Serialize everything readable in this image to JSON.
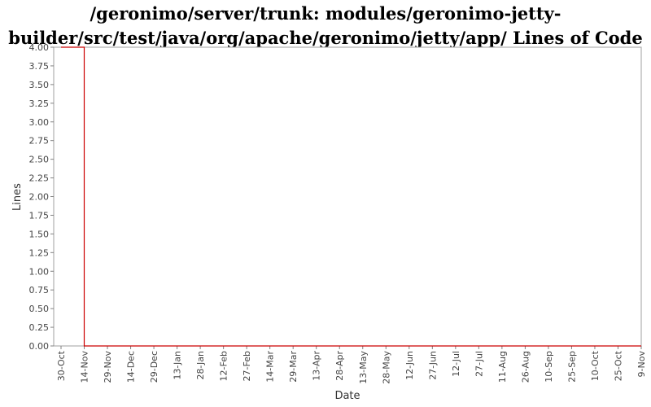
{
  "chart_data": {
    "type": "line",
    "title_lines": [
      "/geronimo/server/trunk: modules/geronimo-jetty-",
      "builder/src/test/java/org/apache/geronimo/jetty/app/ Lines of Code"
    ],
    "xlabel": "Date",
    "ylabel": "Lines",
    "ylim": [
      0,
      4.0
    ],
    "y_ticks": [
      "0.00",
      "0.25",
      "0.50",
      "0.75",
      "1.00",
      "1.25",
      "1.50",
      "1.75",
      "2.00",
      "2.25",
      "2.50",
      "2.75",
      "3.00",
      "3.25",
      "3.50",
      "3.75",
      "4.00"
    ],
    "x_ticks": [
      "30-Oct",
      "14-Nov",
      "29-Nov",
      "14-Dec",
      "29-Dec",
      "13-Jan",
      "28-Jan",
      "12-Feb",
      "27-Feb",
      "14-Mar",
      "29-Mar",
      "13-Apr",
      "28-Apr",
      "13-May",
      "28-May",
      "12-Jun",
      "27-Jun",
      "12-Jul",
      "27-Jul",
      "11-Aug",
      "26-Aug",
      "10-Sep",
      "25-Sep",
      "10-Oct",
      "25-Oct",
      "9-Nov"
    ],
    "grid": false,
    "series": [
      {
        "color": "#cc0000",
        "points": [
          {
            "x": "2005-10-30",
            "y": 4.0
          },
          {
            "x": "2005-11-14",
            "y": 4.0
          },
          {
            "x": "2005-11-14",
            "y": 0.0
          },
          {
            "x": "2006-11-09",
            "y": 0.0
          }
        ]
      }
    ]
  }
}
